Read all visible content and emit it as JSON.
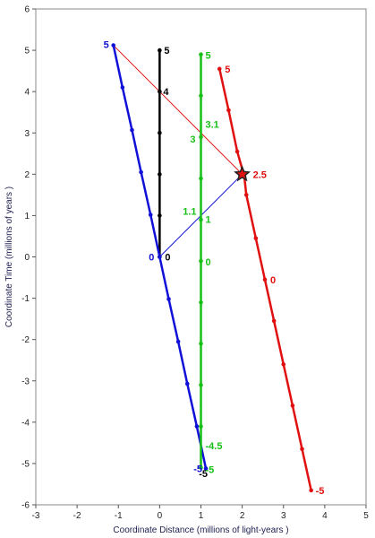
{
  "chart_data": {
    "type": "line",
    "title": "",
    "xlabel": "Coordinate Distance (millions of light-years )",
    "ylabel": "Coordinate Time (millions of years )",
    "xlim": [
      -3,
      5
    ],
    "ylim": [
      -6,
      6
    ],
    "x_ticks": [
      -3,
      -2,
      -1,
      0,
      1,
      2,
      3,
      4,
      5
    ],
    "y_ticks": [
      -6,
      -5,
      -4,
      -3,
      -2,
      -1,
      0,
      1,
      2,
      3,
      4,
      5,
      6
    ],
    "grid": false,
    "series": [
      {
        "color": "#000000",
        "points": [
          [
            0,
            0
          ],
          [
            0,
            1
          ],
          [
            0,
            2
          ],
          [
            0,
            3
          ],
          [
            0,
            4
          ],
          [
            0,
            5
          ]
        ],
        "labels": [
          {
            "x": 0,
            "y": 0,
            "text": "0"
          },
          {
            "x": 0,
            "y": 4,
            "text": "4"
          },
          {
            "x": 0,
            "y": 5,
            "text": "5"
          },
          {
            "x": 1.1,
            "y": -5.2,
            "text": "-5"
          }
        ]
      },
      {
        "color": "#1010d8",
        "points": [
          [
            -1.12,
            5.12
          ],
          [
            -0.9,
            4.1
          ],
          [
            -0.67,
            3.07
          ],
          [
            -0.45,
            2.05
          ],
          [
            -0.22,
            1.02
          ],
          [
            0,
            0
          ],
          [
            0.22,
            -1.02
          ],
          [
            0.45,
            -2.05
          ],
          [
            0.67,
            -3.07
          ],
          [
            0.9,
            -4.1
          ],
          [
            1.12,
            -5.12
          ]
        ],
        "labels": [
          {
            "x": -1.12,
            "y": 5.12,
            "text": "5"
          },
          {
            "x": 0,
            "y": 0,
            "text": "0"
          },
          {
            "x": 1.12,
            "y": -5.12,
            "text": "-5"
          }
        ]
      },
      {
        "color": "#16c016",
        "points": [
          [
            1,
            4.9
          ],
          [
            1,
            3.9
          ],
          [
            1,
            2.9
          ],
          [
            1,
            1.9
          ],
          [
            1,
            0.9
          ],
          [
            1,
            -0.1
          ],
          [
            1,
            -1.1
          ],
          [
            1,
            -2.1
          ],
          [
            1,
            -3.1
          ],
          [
            1,
            -4.1
          ],
          [
            1,
            -5.1
          ]
        ],
        "labels": [
          {
            "x": 1,
            "y": 4.9,
            "text": "5"
          },
          {
            "x": 1,
            "y": 3.1,
            "text": "3.1"
          },
          {
            "x": 1,
            "y": 2.9,
            "text": "3"
          },
          {
            "x": 1,
            "y": 1,
            "text": "1.1"
          },
          {
            "x": 1,
            "y": 0.95,
            "text": "1"
          },
          {
            "x": 1,
            "y": -0.1,
            "text": "0"
          },
          {
            "x": 1,
            "y": -4.5,
            "text": "-4.5"
          },
          {
            "x": 1,
            "y": -5.1,
            "text": "-5"
          }
        ]
      },
      {
        "color": "#e01010",
        "points": [
          [
            1.45,
            4.55
          ],
          [
            1.67,
            3.55
          ],
          [
            1.88,
            2.55
          ],
          [
            2.05,
            1.95
          ],
          [
            2.1,
            1.5
          ],
          [
            2.33,
            0.45
          ],
          [
            2.55,
            -0.55
          ],
          [
            2.77,
            -1.55
          ],
          [
            3.0,
            -2.6
          ],
          [
            3.22,
            -3.6
          ],
          [
            3.45,
            -4.65
          ],
          [
            3.67,
            -5.65
          ]
        ],
        "labels": [
          {
            "x": 1.45,
            "y": 4.55,
            "text": "5"
          },
          {
            "x": 2.0,
            "y": 2.0,
            "text": "2.5"
          },
          {
            "x": 2.55,
            "y": -0.55,
            "text": "0"
          },
          {
            "x": 3.67,
            "y": -5.65,
            "text": "-5"
          }
        ]
      }
    ],
    "connectors": [
      {
        "color": "#e01010",
        "from": [
          -1.12,
          5.12
        ],
        "to": [
          2.0,
          2.0
        ]
      },
      {
        "color": "#1010d8",
        "from": [
          0,
          0
        ],
        "to": [
          2.0,
          2.0
        ]
      }
    ],
    "star": {
      "x": 2.0,
      "y": 2.0,
      "color": "#e01010"
    }
  }
}
